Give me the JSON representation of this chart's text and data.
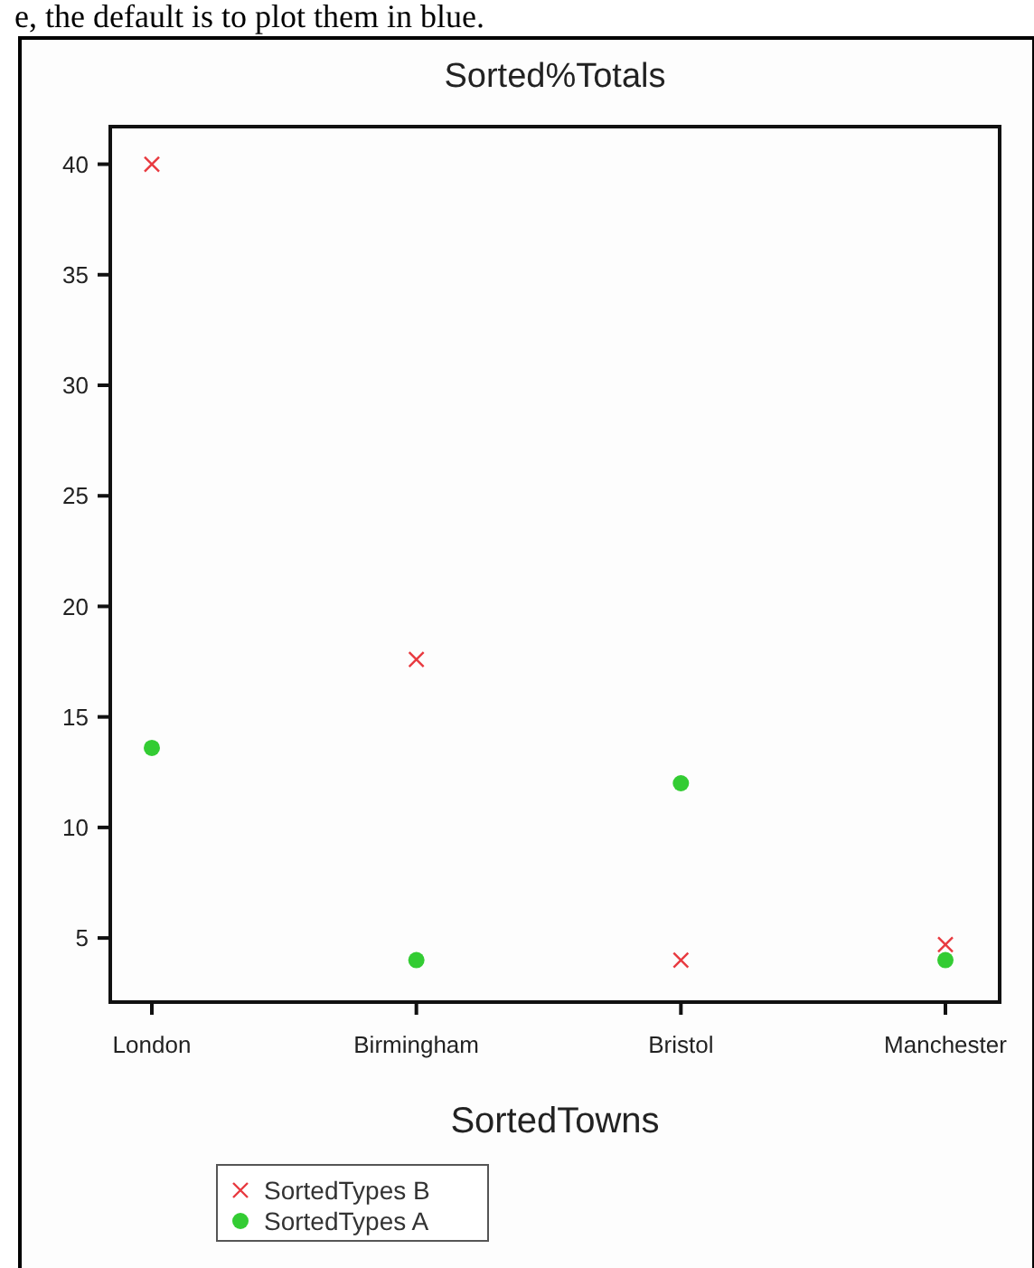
{
  "chart_data": {
    "type": "scatter",
    "title": "Sorted%Totals",
    "xlabel": "SortedTowns",
    "annotations": [
      "e, the default is to plot them in blue."
    ],
    "categories": [
      "London",
      "Birmingham",
      "Bristol",
      "Manchester"
    ],
    "series": [
      {
        "name": "SortedTypes B",
        "color": "#e8393f",
        "marker": "cross",
        "values": [
          40,
          17.6,
          4,
          4.7
        ]
      },
      {
        "name": "SortedTypes A",
        "color": "#33cc33",
        "marker": "circle",
        "values": [
          13.6,
          4,
          12,
          4
        ]
      }
    ],
    "ylim": [
      2.1,
      41.7
    ],
    "yticks": [
      5,
      10,
      15,
      20,
      25,
      30,
      35,
      40
    ],
    "grid": false,
    "legend": "bottom"
  }
}
